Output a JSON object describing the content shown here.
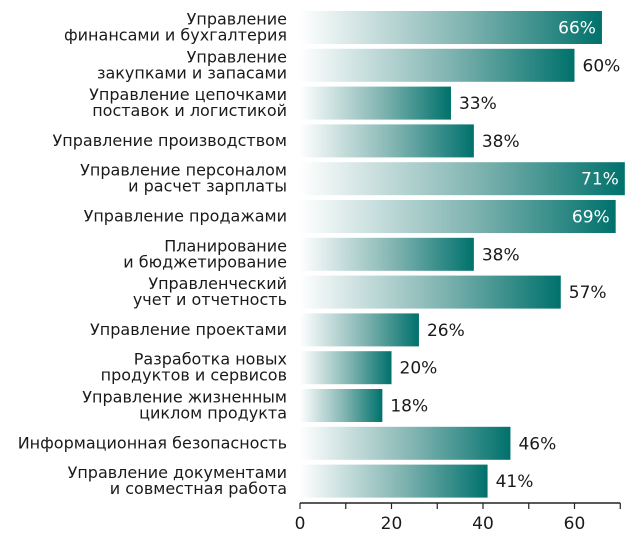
{
  "chart_data": {
    "type": "bar",
    "orientation": "horizontal",
    "categories": [
      [
        "Управление",
        "финансами и бухгалтерия"
      ],
      [
        "Управление",
        "закупками и запасами"
      ],
      [
        "Управление цепочками",
        "поставок и логистикой"
      ],
      [
        "Управление производством"
      ],
      [
        "Управление персоналом",
        "и расчет зарплаты"
      ],
      [
        "Управление продажами"
      ],
      [
        "Планирование",
        "и бюджетирование"
      ],
      [
        "Управленческий",
        "учет и отчетность"
      ],
      [
        "Управление проектами"
      ],
      [
        "Разработка новых",
        "продуктов и сервисов"
      ],
      [
        "Управление жизненным",
        "циклом продукта"
      ],
      [
        "Информационная безопасность"
      ],
      [
        "Управление документами",
        "и совместная работа"
      ]
    ],
    "values": [
      66,
      60,
      33,
      38,
      71,
      69,
      38,
      57,
      26,
      20,
      18,
      46,
      41
    ],
    "value_labels": [
      "66%",
      "60%",
      "33%",
      "38%",
      "71%",
      "69%",
      "38%",
      "57%",
      "26%",
      "20%",
      "18%",
      "46%",
      "41%"
    ],
    "x_ticks": [
      0,
      20,
      40,
      60
    ],
    "xlim": [
      0,
      70
    ],
    "grid": false,
    "colors": {
      "bar_start": "#ffffff",
      "bar_end": "#00716c",
      "axis": "#222222"
    }
  }
}
